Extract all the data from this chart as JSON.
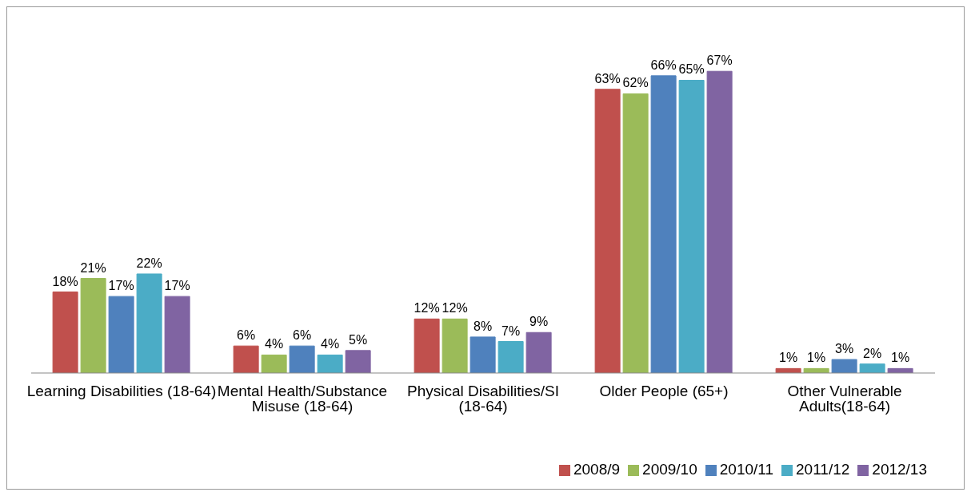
{
  "chart_data": {
    "type": "bar",
    "categories": [
      "Learning Disabilities (18-64)",
      "Mental Health/Substance Misuse (18-64)",
      "Physical Disabilities/SI (18-64)",
      "Older People (65+)",
      "Other Vulnerable Adults(18-64)"
    ],
    "series": [
      {
        "name": "2008/9",
        "color": "#c0504d",
        "values": [
          18,
          6,
          12,
          63,
          1
        ],
        "value_labels": [
          "18%",
          "6%",
          "12%",
          "63%",
          "1%"
        ]
      },
      {
        "name": "2009/10",
        "color": "#9bbb59",
        "values": [
          21,
          4,
          12,
          62,
          1
        ],
        "value_labels": [
          "21%",
          "4%",
          "12%",
          "62%",
          "1%"
        ]
      },
      {
        "name": "2010/11",
        "color": "#4f81bd",
        "values": [
          17,
          6,
          8,
          66,
          3
        ],
        "value_labels": [
          "17%",
          "6%",
          "8%",
          "66%",
          "3%"
        ]
      },
      {
        "name": "2011/12",
        "color": "#4bacc6",
        "values": [
          22,
          4,
          7,
          65,
          2
        ],
        "value_labels": [
          "22%",
          "4%",
          "7%",
          "65%",
          "2%"
        ]
      },
      {
        "name": "2012/13",
        "color": "#8064a2",
        "values": [
          17,
          5,
          9,
          67,
          1
        ],
        "value_labels": [
          "17%",
          "5%",
          "9%",
          "67%",
          "1%"
        ]
      }
    ],
    "legend": "bottom right"
  }
}
